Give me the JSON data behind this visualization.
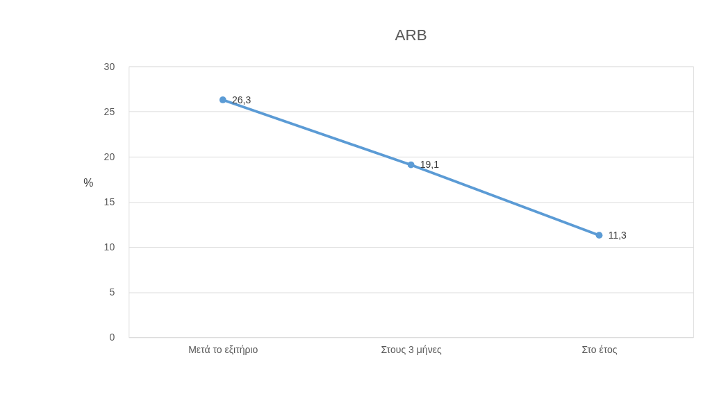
{
  "chart_data": {
    "type": "line",
    "title": "ARB",
    "ylabel": "%",
    "categories": [
      "Μετά το εξιτήριο",
      "Στους 3 μήνες",
      "Στο έτος"
    ],
    "series": [
      {
        "color": "#5b9bd5",
        "values": [
          26.3,
          19.1,
          11.3
        ],
        "value_labels": [
          "26,3",
          "19,1",
          "11,3"
        ]
      }
    ],
    "ylim": [
      0,
      30
    ],
    "yticks": [
      0,
      5,
      10,
      15,
      20,
      25,
      30
    ],
    "grid": "y",
    "marker": "circle",
    "line_style": "solid"
  }
}
